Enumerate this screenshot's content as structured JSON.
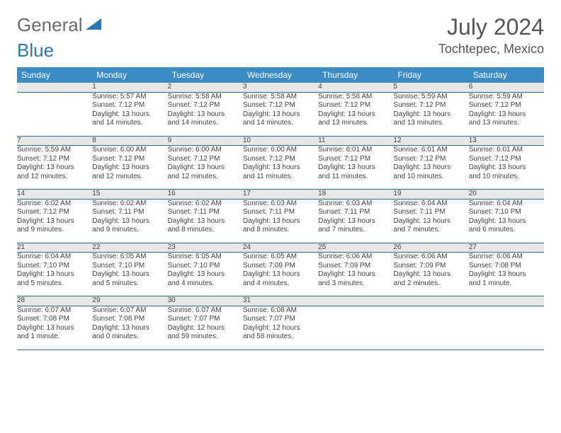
{
  "logo": {
    "part1": "General",
    "part2": "Blue"
  },
  "title": "July 2024",
  "location": "Tochtepec, Mexico",
  "colors": {
    "header_bg": "#3b8bc4",
    "header_text": "#ffffff",
    "daynum_bg": "#e8e8e8",
    "row_border": "#2a6a9a",
    "text": "#444444",
    "logo_gray": "#6b6b6b",
    "logo_blue": "#2a7ab0"
  },
  "day_headers": [
    "Sunday",
    "Monday",
    "Tuesday",
    "Wednesday",
    "Thursday",
    "Friday",
    "Saturday"
  ],
  "weeks": [
    {
      "nums": [
        "",
        "1",
        "2",
        "3",
        "4",
        "5",
        "6"
      ],
      "cells": [
        null,
        {
          "sunrise": "Sunrise: 5:57 AM",
          "sunset": "Sunset: 7:12 PM",
          "day1": "Daylight: 13 hours",
          "day2": "and 14 minutes."
        },
        {
          "sunrise": "Sunrise: 5:58 AM",
          "sunset": "Sunset: 7:12 PM",
          "day1": "Daylight: 13 hours",
          "day2": "and 14 minutes."
        },
        {
          "sunrise": "Sunrise: 5:58 AM",
          "sunset": "Sunset: 7:12 PM",
          "day1": "Daylight: 13 hours",
          "day2": "and 14 minutes."
        },
        {
          "sunrise": "Sunrise: 5:58 AM",
          "sunset": "Sunset: 7:12 PM",
          "day1": "Daylight: 13 hours",
          "day2": "and 13 minutes."
        },
        {
          "sunrise": "Sunrise: 5:59 AM",
          "sunset": "Sunset: 7:12 PM",
          "day1": "Daylight: 13 hours",
          "day2": "and 13 minutes."
        },
        {
          "sunrise": "Sunrise: 5:59 AM",
          "sunset": "Sunset: 7:12 PM",
          "day1": "Daylight: 13 hours",
          "day2": "and 13 minutes."
        }
      ]
    },
    {
      "nums": [
        "7",
        "8",
        "9",
        "10",
        "11",
        "12",
        "13"
      ],
      "cells": [
        {
          "sunrise": "Sunrise: 5:59 AM",
          "sunset": "Sunset: 7:12 PM",
          "day1": "Daylight: 13 hours",
          "day2": "and 12 minutes."
        },
        {
          "sunrise": "Sunrise: 6:00 AM",
          "sunset": "Sunset: 7:12 PM",
          "day1": "Daylight: 13 hours",
          "day2": "and 12 minutes."
        },
        {
          "sunrise": "Sunrise: 6:00 AM",
          "sunset": "Sunset: 7:12 PM",
          "day1": "Daylight: 13 hours",
          "day2": "and 12 minutes."
        },
        {
          "sunrise": "Sunrise: 6:00 AM",
          "sunset": "Sunset: 7:12 PM",
          "day1": "Daylight: 13 hours",
          "day2": "and 11 minutes."
        },
        {
          "sunrise": "Sunrise: 6:01 AM",
          "sunset": "Sunset: 7:12 PM",
          "day1": "Daylight: 13 hours",
          "day2": "and 11 minutes."
        },
        {
          "sunrise": "Sunrise: 6:01 AM",
          "sunset": "Sunset: 7:12 PM",
          "day1": "Daylight: 13 hours",
          "day2": "and 10 minutes."
        },
        {
          "sunrise": "Sunrise: 6:01 AM",
          "sunset": "Sunset: 7:12 PM",
          "day1": "Daylight: 13 hours",
          "day2": "and 10 minutes."
        }
      ]
    },
    {
      "nums": [
        "14",
        "15",
        "16",
        "17",
        "18",
        "19",
        "20"
      ],
      "cells": [
        {
          "sunrise": "Sunrise: 6:02 AM",
          "sunset": "Sunset: 7:12 PM",
          "day1": "Daylight: 13 hours",
          "day2": "and 9 minutes."
        },
        {
          "sunrise": "Sunrise: 6:02 AM",
          "sunset": "Sunset: 7:11 PM",
          "day1": "Daylight: 13 hours",
          "day2": "and 9 minutes."
        },
        {
          "sunrise": "Sunrise: 6:02 AM",
          "sunset": "Sunset: 7:11 PM",
          "day1": "Daylight: 13 hours",
          "day2": "and 8 minutes."
        },
        {
          "sunrise": "Sunrise: 6:03 AM",
          "sunset": "Sunset: 7:11 PM",
          "day1": "Daylight: 13 hours",
          "day2": "and 8 minutes."
        },
        {
          "sunrise": "Sunrise: 6:03 AM",
          "sunset": "Sunset: 7:11 PM",
          "day1": "Daylight: 13 hours",
          "day2": "and 7 minutes."
        },
        {
          "sunrise": "Sunrise: 6:04 AM",
          "sunset": "Sunset: 7:11 PM",
          "day1": "Daylight: 13 hours",
          "day2": "and 7 minutes."
        },
        {
          "sunrise": "Sunrise: 6:04 AM",
          "sunset": "Sunset: 7:10 PM",
          "day1": "Daylight: 13 hours",
          "day2": "and 6 minutes."
        }
      ]
    },
    {
      "nums": [
        "21",
        "22",
        "23",
        "24",
        "25",
        "26",
        "27"
      ],
      "cells": [
        {
          "sunrise": "Sunrise: 6:04 AM",
          "sunset": "Sunset: 7:10 PM",
          "day1": "Daylight: 13 hours",
          "day2": "and 5 minutes."
        },
        {
          "sunrise": "Sunrise: 6:05 AM",
          "sunset": "Sunset: 7:10 PM",
          "day1": "Daylight: 13 hours",
          "day2": "and 5 minutes."
        },
        {
          "sunrise": "Sunrise: 6:05 AM",
          "sunset": "Sunset: 7:10 PM",
          "day1": "Daylight: 13 hours",
          "day2": "and 4 minutes."
        },
        {
          "sunrise": "Sunrise: 6:05 AM",
          "sunset": "Sunset: 7:09 PM",
          "day1": "Daylight: 13 hours",
          "day2": "and 4 minutes."
        },
        {
          "sunrise": "Sunrise: 6:06 AM",
          "sunset": "Sunset: 7:09 PM",
          "day1": "Daylight: 13 hours",
          "day2": "and 3 minutes."
        },
        {
          "sunrise": "Sunrise: 6:06 AM",
          "sunset": "Sunset: 7:09 PM",
          "day1": "Daylight: 13 hours",
          "day2": "and 2 minutes."
        },
        {
          "sunrise": "Sunrise: 6:06 AM",
          "sunset": "Sunset: 7:08 PM",
          "day1": "Daylight: 13 hours",
          "day2": "and 1 minute."
        }
      ]
    },
    {
      "nums": [
        "28",
        "29",
        "30",
        "31",
        "",
        "",
        ""
      ],
      "cells": [
        {
          "sunrise": "Sunrise: 6:07 AM",
          "sunset": "Sunset: 7:08 PM",
          "day1": "Daylight: 13 hours",
          "day2": "and 1 minute."
        },
        {
          "sunrise": "Sunrise: 6:07 AM",
          "sunset": "Sunset: 7:08 PM",
          "day1": "Daylight: 13 hours",
          "day2": "and 0 minutes."
        },
        {
          "sunrise": "Sunrise: 6:07 AM",
          "sunset": "Sunset: 7:07 PM",
          "day1": "Daylight: 12 hours",
          "day2": "and 59 minutes."
        },
        {
          "sunrise": "Sunrise: 6:08 AM",
          "sunset": "Sunset: 7:07 PM",
          "day1": "Daylight: 12 hours",
          "day2": "and 58 minutes."
        },
        null,
        null,
        null
      ]
    }
  ]
}
